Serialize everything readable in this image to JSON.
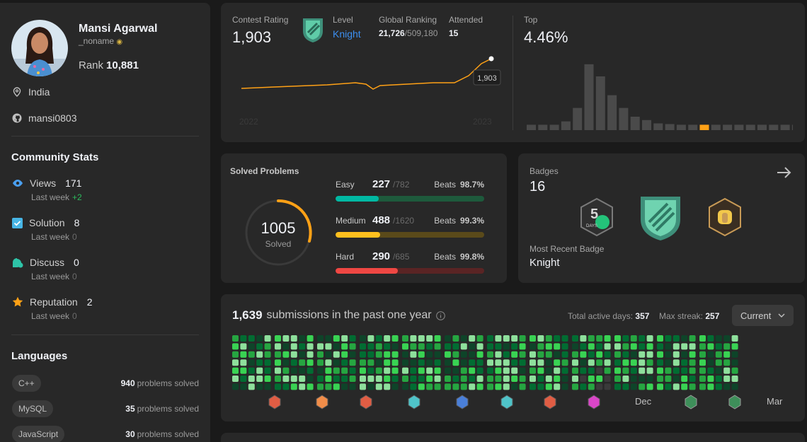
{
  "profile": {
    "name": "Mansi Agarwal",
    "username": "_noname",
    "rank_label": "Rank",
    "rank": "10,881",
    "location": "India",
    "github": "mansi0803"
  },
  "community": {
    "title": "Community Stats",
    "views": {
      "label": "Views",
      "value": "171",
      "sub": "Last week",
      "delta": "+2"
    },
    "solution": {
      "label": "Solution",
      "value": "8",
      "sub": "Last week",
      "delta": "0"
    },
    "discuss": {
      "label": "Discuss",
      "value": "0",
      "sub": "Last week",
      "delta": "0"
    },
    "reputation": {
      "label": "Reputation",
      "value": "2",
      "sub": "Last week",
      "delta": "0"
    }
  },
  "languages": {
    "title": "Languages",
    "items": [
      {
        "name": "C++",
        "count": "940",
        "suffix": "problems solved"
      },
      {
        "name": "MySQL",
        "count": "35",
        "suffix": "problems solved"
      },
      {
        "name": "JavaScript",
        "count": "30",
        "suffix": "problems solved"
      }
    ]
  },
  "contest": {
    "rating_label": "Contest Rating",
    "rating": "1,903",
    "level_label": "Level",
    "level": "Knight",
    "global_label": "Global Ranking",
    "global_rank": "21,726",
    "global_total": "/509,180",
    "attended_label": "Attended",
    "attended": "15",
    "tooltip": "1,903",
    "x_start": "2022",
    "x_end": "2023",
    "top_label": "Top",
    "top_value": "4.46%",
    "line_color": "#ffa116",
    "histogram": [
      0.08,
      0.08,
      0.08,
      0.13,
      0.33,
      0.98,
      0.8,
      0.52,
      0.33,
      0.2,
      0.15,
      0.1,
      0.09,
      0.08,
      0.08,
      0.08,
      0.08,
      0.08,
      0.08,
      0.08,
      0.08,
      0.08,
      0.08,
      0.08
    ],
    "histogram_highlight": 15
  },
  "solved": {
    "title": "Solved Problems",
    "total": "1005",
    "total_label": "Solved",
    "easy": {
      "label": "Easy",
      "solved": "227",
      "total": "/782",
      "beats_label": "Beats",
      "beats": "98.7%",
      "ratio": 0.29,
      "color": "#00b8a3",
      "track": "#1e5a3c"
    },
    "medium": {
      "label": "Medium",
      "solved": "488",
      "total": "/1620",
      "beats_label": "Beats",
      "beats": "99.3%",
      "ratio": 0.3,
      "color": "#ffc01e",
      "track": "#5a4a1a"
    },
    "hard": {
      "label": "Hard",
      "solved": "290",
      "total": "/685",
      "beats_label": "Beats",
      "beats": "99.8%",
      "ratio": 0.42,
      "color": "#ef4743",
      "track": "#5a2424"
    }
  },
  "badges": {
    "title": "Badges",
    "count": "16",
    "recent_label": "Most Recent Badge",
    "recent": "Knight",
    "icons": [
      "50-days-badge-icon",
      "knight-badge-icon",
      "2023-badge-icon"
    ],
    "fifty_text": "DAYS"
  },
  "submissions": {
    "count": "1,639",
    "label": "submissions in the past one year",
    "active_label": "Total active days:",
    "active": "357",
    "streak_label": "Max streak:",
    "streak": "257",
    "select": "Current",
    "month_dec": "Dec",
    "month_mar": "Mar",
    "month_icons": [
      "#e05d44",
      "#f08d49",
      "#e05d44",
      "#4fc3c8",
      "#4a7fd8",
      "#4fc3c8",
      "#e05d44",
      "#d946c7"
    ]
  }
}
